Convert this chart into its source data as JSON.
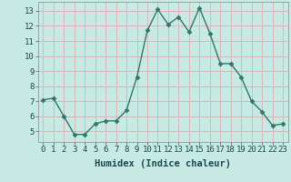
{
  "x": [
    0,
    1,
    2,
    3,
    4,
    5,
    6,
    7,
    8,
    9,
    10,
    11,
    12,
    13,
    14,
    15,
    16,
    17,
    18,
    19,
    20,
    21,
    22,
    23
  ],
  "y": [
    7.1,
    7.2,
    6.0,
    4.8,
    4.8,
    5.5,
    5.7,
    5.7,
    6.4,
    8.6,
    11.7,
    13.1,
    12.1,
    12.6,
    11.6,
    13.2,
    11.5,
    9.5,
    9.5,
    8.6,
    7.0,
    6.3,
    5.4,
    5.5
  ],
  "xlabel": "Humidex (Indice chaleur)",
  "line_color": "#2d7a6a",
  "marker_color": "#2d7a6a",
  "bg_color": "#c8eae4",
  "grid_color": "#d9b8b8",
  "axis_label_color": "#1a4a50",
  "ylim": [
    4.3,
    13.6
  ],
  "xlim": [
    -0.5,
    23.5
  ],
  "yticks": [
    5,
    6,
    7,
    8,
    9,
    10,
    11,
    12,
    13
  ],
  "xticks": [
    0,
    1,
    2,
    3,
    4,
    5,
    6,
    7,
    8,
    9,
    10,
    11,
    12,
    13,
    14,
    15,
    16,
    17,
    18,
    19,
    20,
    21,
    22,
    23
  ],
  "xlabel_fontsize": 7.5,
  "tick_fontsize": 6.5,
  "marker_size": 2.5,
  "line_width": 1.0
}
